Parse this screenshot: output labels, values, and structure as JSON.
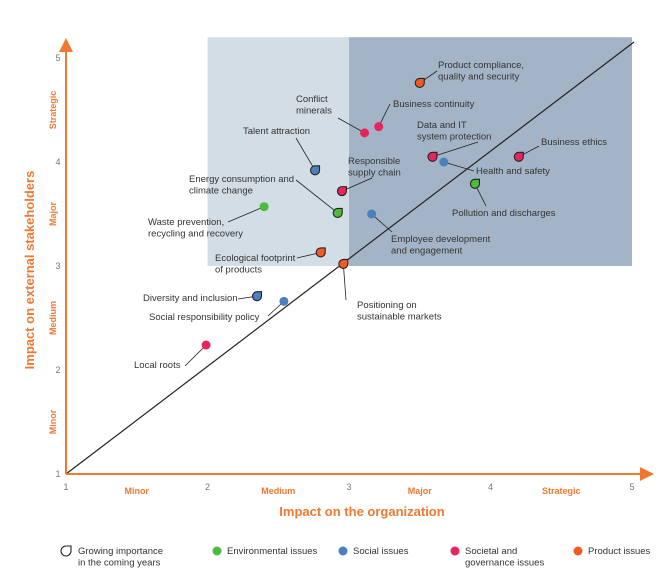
{
  "chart_data": {
    "type": "scatter",
    "xlabel": "Impact on the organization",
    "ylabel": "Impact on external stakeholders",
    "xlim": [
      1,
      5
    ],
    "ylim": [
      1,
      5
    ],
    "x_ticks": [
      "1",
      "2",
      "3",
      "4",
      "5"
    ],
    "y_ticks": [
      "1",
      "2",
      "3",
      "4",
      "5"
    ],
    "x_categories": [
      "Minor",
      "Medium",
      "Major",
      "Strategic"
    ],
    "y_categories": [
      "Minor",
      "Medium",
      "Major",
      "Strategic"
    ],
    "diagonal": {
      "from": [
        1,
        1
      ],
      "to": [
        5,
        5
      ]
    },
    "zones": [
      {
        "x": [
          2,
          3
        ],
        "y": [
          3,
          5.2
        ],
        "color": "#d3dde5"
      },
      {
        "x": [
          3,
          5
        ],
        "y": [
          3,
          5.2
        ],
        "color": "#a3b4c7"
      }
    ],
    "categories": {
      "environmental": {
        "label": "Environmental issues",
        "color": "#4cbb3e"
      },
      "social": {
        "label": "Social issues",
        "color": "#4a80bd"
      },
      "societal": {
        "label": "Societal and\ngovernance issues",
        "color": "#e8245f"
      },
      "product": {
        "label": "Product issues",
        "color": "#f15a22"
      }
    },
    "growing_label": "Growing importance\nin the coming years",
    "points": [
      {
        "label": "Product compliance,\nquality and security",
        "x": 3.5,
        "y": 4.76,
        "cat": "product",
        "growing": true
      },
      {
        "label": "Conflict\nminerals",
        "x": 3.11,
        "y": 4.28,
        "cat": "societal",
        "growing": false
      },
      {
        "label": "Business continuity",
        "x": 3.21,
        "y": 4.34,
        "cat": "societal",
        "growing": false
      },
      {
        "label": "Talent attraction",
        "x": 2.76,
        "y": 3.92,
        "cat": "social",
        "growing": true
      },
      {
        "label": "Data and IT\nsystem protection",
        "x": 3.59,
        "y": 4.05,
        "cat": "societal",
        "growing": true
      },
      {
        "label": "Health and safety",
        "x": 3.67,
        "y": 4.0,
        "cat": "social",
        "growing": false
      },
      {
        "label": "Business ethics",
        "x": 4.2,
        "y": 4.05,
        "cat": "societal",
        "growing": true
      },
      {
        "label": "Responsible\nsupply chain",
        "x": 2.95,
        "y": 3.72,
        "cat": "societal",
        "growing": true
      },
      {
        "label": "Pollution and discharges",
        "x": 3.89,
        "y": 3.79,
        "cat": "environmental",
        "growing": true
      },
      {
        "label": "Energy consumption and\nclimate change",
        "x": 2.92,
        "y": 3.51,
        "cat": "environmental",
        "growing": true
      },
      {
        "label": "Waste prevention,\nrecycling and recovery",
        "x": 2.4,
        "y": 3.57,
        "cat": "environmental",
        "growing": false
      },
      {
        "label": "Employee development\nand engagement",
        "x": 3.16,
        "y": 3.5,
        "cat": "social",
        "growing": false
      },
      {
        "label": "Ecological footprint\nof products",
        "x": 2.8,
        "y": 3.13,
        "cat": "product",
        "growing": true
      },
      {
        "label": "Positioning on\nsustainable markets",
        "x": 2.96,
        "y": 3.02,
        "cat": "product",
        "growing": true
      },
      {
        "label": "Diversity and inclusion",
        "x": 2.35,
        "y": 2.71,
        "cat": "social",
        "growing": true
      },
      {
        "label": "Social responsibility policy",
        "x": 2.54,
        "y": 2.66,
        "cat": "social",
        "growing": false
      },
      {
        "label": "Local roots",
        "x": 1.99,
        "y": 2.24,
        "cat": "societal",
        "growing": false
      }
    ],
    "axis_color": "#f07830"
  }
}
